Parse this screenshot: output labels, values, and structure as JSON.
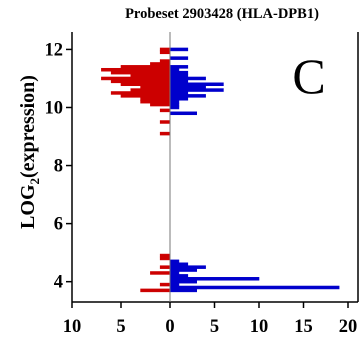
{
  "chart_data": {
    "type": "bar",
    "orientation": "horizontal-mirrored",
    "title": "Probeset 2903428 (HLA-DPB1)",
    "panel_label": "C",
    "ylabel_prefix": "LOG",
    "ylabel_subscript": "2",
    "ylabel_suffix": "(expression)",
    "xlabel": "",
    "ylim": [
      3.3,
      12.6
    ],
    "x_left_range": [
      0,
      10
    ],
    "x_right_range": [
      0,
      20
    ],
    "yticks": [
      4,
      6,
      8,
      10,
      12
    ],
    "ytick_labels": [
      "4",
      "6",
      "8",
      "10",
      "12"
    ],
    "xticks_left": [
      10,
      5,
      0
    ],
    "xticks_left_labels": [
      "10",
      "5",
      "0"
    ],
    "xticks_right": [
      5,
      10,
      15,
      20
    ],
    "xticks_right_labels": [
      "5",
      "10",
      "15",
      "20"
    ],
    "bin_height": 0.1,
    "grid": false,
    "legend": "none",
    "series": [
      {
        "side": "left",
        "color": "#cc0000",
        "bins": [
          {
            "y": 12.0,
            "count": 1
          },
          {
            "y": 11.9,
            "count": 1
          },
          {
            "y": 11.6,
            "count": 1
          },
          {
            "y": 11.5,
            "count": 2
          },
          {
            "y": 11.4,
            "count": 5
          },
          {
            "y": 11.3,
            "count": 7
          },
          {
            "y": 11.2,
            "count": 6
          },
          {
            "y": 11.1,
            "count": 4
          },
          {
            "y": 11.0,
            "count": 7
          },
          {
            "y": 10.9,
            "count": 6
          },
          {
            "y": 10.8,
            "count": 5
          },
          {
            "y": 10.7,
            "count": 3
          },
          {
            "y": 10.6,
            "count": 4
          },
          {
            "y": 10.5,
            "count": 6
          },
          {
            "y": 10.4,
            "count": 5
          },
          {
            "y": 10.3,
            "count": 3
          },
          {
            "y": 10.2,
            "count": 3
          },
          {
            "y": 10.1,
            "count": 2
          },
          {
            "y": 9.9,
            "count": 1
          },
          {
            "y": 9.5,
            "count": 1
          },
          {
            "y": 9.1,
            "count": 1
          },
          {
            "y": 4.9,
            "count": 1
          },
          {
            "y": 4.8,
            "count": 1
          },
          {
            "y": 4.5,
            "count": 1
          },
          {
            "y": 4.3,
            "count": 2
          },
          {
            "y": 3.9,
            "count": 1
          },
          {
            "y": 3.7,
            "count": 3
          }
        ]
      },
      {
        "side": "right",
        "color": "#0000cc",
        "bins": [
          {
            "y": 12.0,
            "count": 2
          },
          {
            "y": 11.7,
            "count": 2
          },
          {
            "y": 11.4,
            "count": 2
          },
          {
            "y": 11.3,
            "count": 1
          },
          {
            "y": 11.2,
            "count": 2
          },
          {
            "y": 11.1,
            "count": 2
          },
          {
            "y": 11.0,
            "count": 4
          },
          {
            "y": 10.9,
            "count": 2
          },
          {
            "y": 10.8,
            "count": 6
          },
          {
            "y": 10.7,
            "count": 4
          },
          {
            "y": 10.6,
            "count": 6
          },
          {
            "y": 10.5,
            "count": 2
          },
          {
            "y": 10.4,
            "count": 4
          },
          {
            "y": 10.3,
            "count": 2
          },
          {
            "y": 10.2,
            "count": 1
          },
          {
            "y": 10.1,
            "count": 1
          },
          {
            "y": 10.0,
            "count": 1
          },
          {
            "y": 9.8,
            "count": 3
          },
          {
            "y": 4.7,
            "count": 1
          },
          {
            "y": 4.6,
            "count": 2
          },
          {
            "y": 4.5,
            "count": 4
          },
          {
            "y": 4.4,
            "count": 3
          },
          {
            "y": 4.3,
            "count": 1
          },
          {
            "y": 4.2,
            "count": 2
          },
          {
            "y": 4.1,
            "count": 10
          },
          {
            "y": 4.0,
            "count": 3
          },
          {
            "y": 3.9,
            "count": 1
          },
          {
            "y": 3.8,
            "count": 19
          },
          {
            "y": 3.7,
            "count": 3
          }
        ]
      }
    ]
  }
}
